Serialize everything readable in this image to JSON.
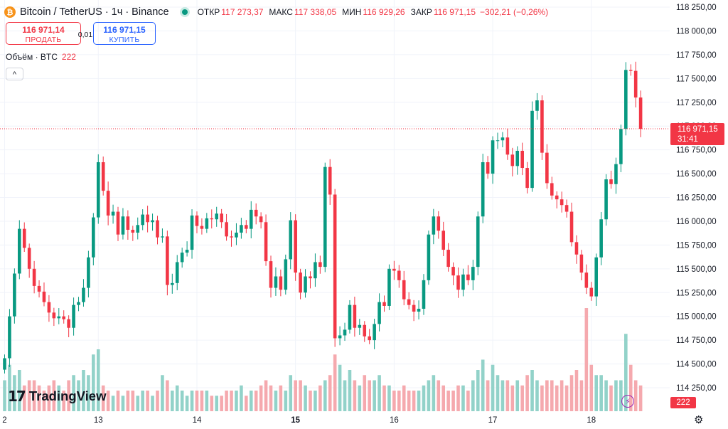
{
  "header": {
    "coin_icon": "₿",
    "title": "Bitcoin / TetherUS · 1ч · Binance",
    "ohlc": {
      "open_label": "ОТКР",
      "open": "117 273,37",
      "high_label": "МАКС",
      "high": "117 338,05",
      "low_label": "МИН",
      "low": "116 929,26",
      "close_label": "ЗАКР",
      "close": "116 971,15",
      "change": "−302,21 (−0,26%)"
    }
  },
  "trade": {
    "sell_price": "116 971,14",
    "sell_label": "ПРОДАТЬ",
    "spread": "0,01",
    "buy_price": "116 971,15",
    "buy_label": "КУПИТЬ"
  },
  "volume_legend": {
    "label": "Объём · BTC",
    "value": "222"
  },
  "collapse_icon": "^",
  "logo": {
    "mark": "17",
    "text": "TradingView"
  },
  "price_label": {
    "price": "116 971,15",
    "countdown": "31:41"
  },
  "volume_label": "222",
  "colors": {
    "up": "#089981",
    "down": "#f23645",
    "up_vol": "#92d2c9",
    "down_vol": "#f5a9ae"
  },
  "chart_data": {
    "type": "candlestick",
    "interval": "1h",
    "y_ticks": [
      114250,
      114500,
      114750,
      115000,
      115250,
      115500,
      115750,
      116000,
      116250,
      116500,
      116750,
      117000,
      117250,
      117500,
      117750,
      118000,
      118250
    ],
    "y_tick_labels": [
      "114 250,00",
      "114 500,00",
      "114 750,00",
      "115 000,00",
      "115 250,00",
      "115 500,00",
      "115 750,00",
      "116 000,00",
      "116 250,00",
      "116 500,00",
      "116 750,00",
      "117 000,00",
      "117 250,00",
      "117 500,00",
      "117 750,00",
      "118 000,00",
      "118 250,00"
    ],
    "ylim": [
      114090,
      118320
    ],
    "x_labels": [
      {
        "label": "2",
        "index": 0,
        "bold": false
      },
      {
        "label": "13",
        "index": 19,
        "bold": false
      },
      {
        "label": "14",
        "index": 39,
        "bold": false
      },
      {
        "label": "15",
        "index": 59,
        "bold": true
      },
      {
        "label": "16",
        "index": 79,
        "bold": false
      },
      {
        "label": "17",
        "index": 99,
        "bold": false
      },
      {
        "label": "18",
        "index": 119,
        "bold": false
      }
    ],
    "last_price": 116971.15,
    "closes": [
      114560,
      115000,
      115450,
      115920,
      115720,
      115500,
      115320,
      115260,
      115150,
      115040,
      114980,
      115000,
      114970,
      114880,
      115120,
      115150,
      115300,
      115620,
      116040,
      116620,
      116320,
      116060,
      116100,
      115860,
      116050,
      115910,
      115880,
      115960,
      116070,
      115990,
      116010,
      115830,
      115840,
      115330,
      115350,
      115570,
      115670,
      115700,
      116060,
      115950,
      115920,
      116030,
      116020,
      116080,
      115990,
      115840,
      115830,
      115880,
      115960,
      115920,
      116120,
      116050,
      115990,
      115580,
      115300,
      115420,
      115280,
      115600,
      116010,
      115460,
      115250,
      115420,
      115400,
      115570,
      115520,
      116570,
      116280,
      114770,
      114800,
      114860,
      115120,
      114880,
      114910,
      114790,
      114750,
      114920,
      115150,
      115110,
      115500,
      115480,
      115380,
      115180,
      115120,
      115050,
      115080,
      115380,
      115860,
      116050,
      115900,
      115700,
      115520,
      115430,
      115280,
      115440,
      115380,
      115520,
      116050,
      116620,
      116500,
      116850,
      116850,
      116880,
      116700,
      116580,
      116740,
      116560,
      116350,
      117160,
      117270,
      116720,
      116400,
      116270,
      116230,
      116170,
      116100,
      115780,
      115650,
      115460,
      115300,
      115210,
      115620,
      116020,
      116440,
      116390,
      116600,
      116970,
      117590,
      117580,
      117300,
      116970
    ],
    "volumes_rel": [
      0.3,
      0.45,
      0.35,
      0.4,
      0.25,
      0.3,
      0.3,
      0.25,
      0.2,
      0.25,
      0.3,
      0.25,
      0.2,
      0.3,
      0.35,
      0.3,
      0.4,
      0.35,
      0.55,
      0.6,
      0.25,
      0.2,
      0.15,
      0.2,
      0.15,
      0.2,
      0.2,
      0.15,
      0.2,
      0.2,
      0.15,
      0.2,
      0.35,
      0.3,
      0.2,
      0.25,
      0.2,
      0.15,
      0.2,
      0.2,
      0.2,
      0.2,
      0.15,
      0.15,
      0.15,
      0.2,
      0.2,
      0.2,
      0.25,
      0.15,
      0.2,
      0.2,
      0.25,
      0.3,
      0.25,
      0.2,
      0.25,
      0.2,
      0.35,
      0.3,
      0.3,
      0.25,
      0.2,
      0.2,
      0.25,
      0.3,
      0.35,
      0.55,
      0.45,
      0.3,
      0.4,
      0.3,
      0.25,
      0.35,
      0.3,
      0.3,
      0.35,
      0.25,
      0.25,
      0.2,
      0.2,
      0.25,
      0.2,
      0.2,
      0.2,
      0.25,
      0.3,
      0.35,
      0.3,
      0.25,
      0.2,
      0.2,
      0.25,
      0.25,
      0.2,
      0.3,
      0.4,
      0.5,
      0.3,
      0.45,
      0.35,
      0.3,
      0.3,
      0.25,
      0.3,
      0.25,
      0.35,
      0.4,
      0.3,
      0.25,
      0.3,
      0.3,
      0.25,
      0.3,
      0.25,
      0.35,
      0.4,
      0.3,
      1.0,
      0.45,
      0.35,
      0.35,
      0.3,
      0.25,
      0.3,
      0.3,
      0.75,
      0.45,
      0.3,
      0.25
    ]
  }
}
